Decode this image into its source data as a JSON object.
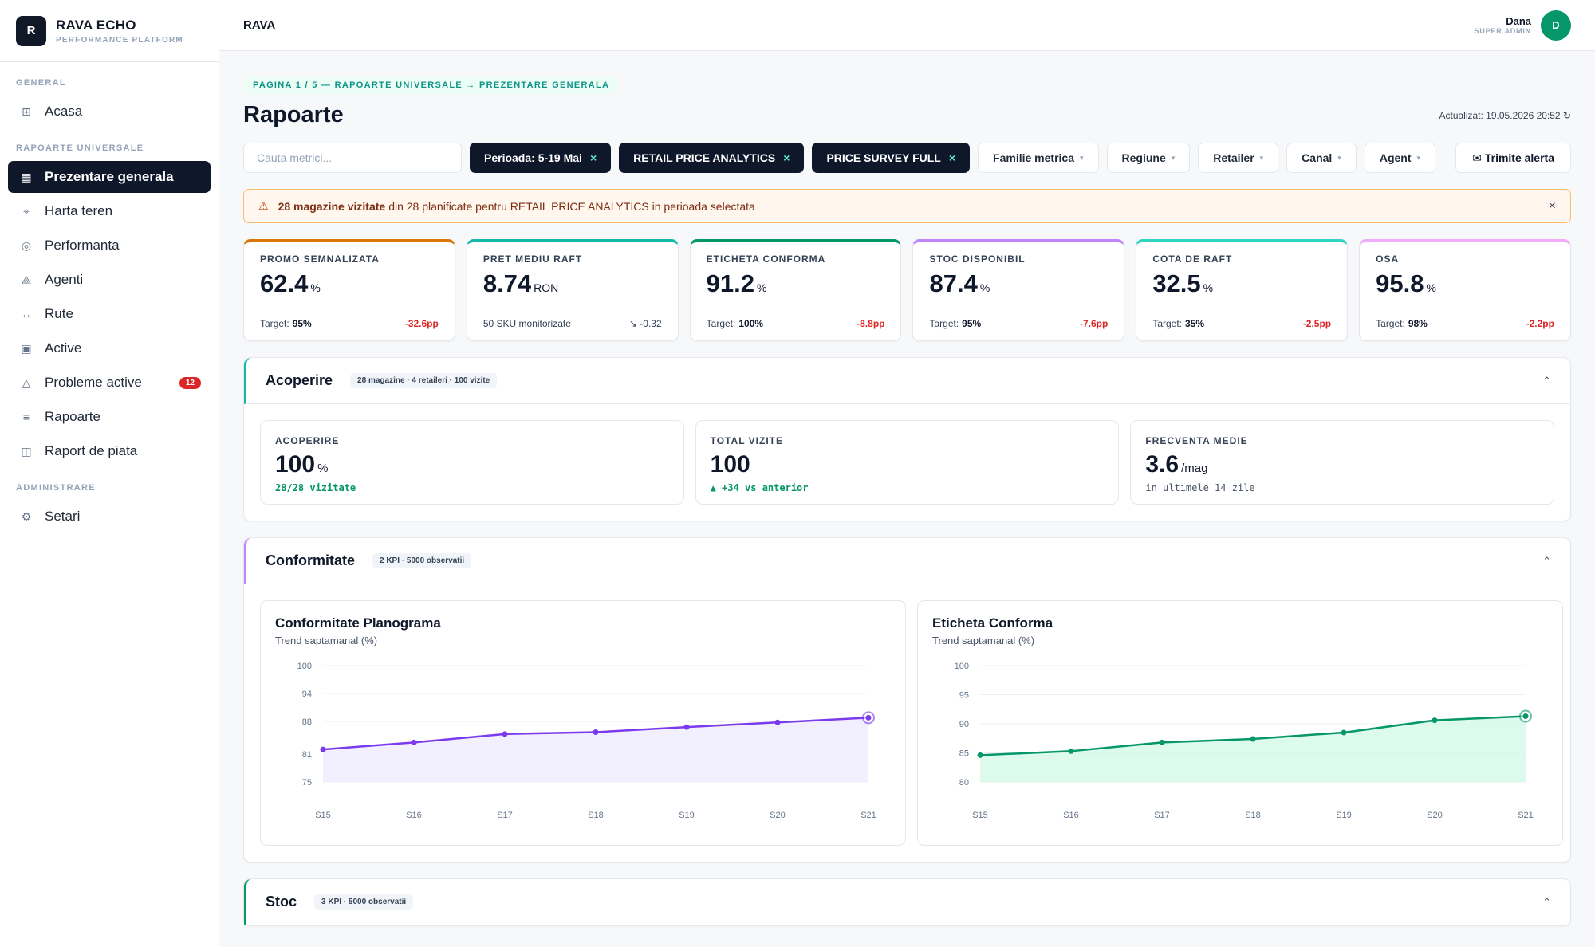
{
  "brand": {
    "logo_letter": "R",
    "name": "RAVA ECHO",
    "subtitle": "PERFORMANCE PLATFORM"
  },
  "sidebar": {
    "sections": [
      {
        "title": "GENERAL"
      },
      {
        "title": "RAPOARTE UNIVERSALE"
      },
      {
        "title": "ADMINISTRARE"
      }
    ],
    "items": [
      {
        "label": "Acasa",
        "icon": "grid-icon"
      },
      {
        "label": "Prezentare generala",
        "icon": "dashboard-icon",
        "active": true
      },
      {
        "label": "Harta teren",
        "icon": "map-pin-icon"
      },
      {
        "label": "Performanta",
        "icon": "target-icon"
      },
      {
        "label": "Agenti",
        "icon": "agents-icon"
      },
      {
        "label": "Rute",
        "icon": "route-icon"
      },
      {
        "label": "Active",
        "icon": "assets-icon"
      },
      {
        "label": "Probleme active",
        "icon": "warning-icon",
        "badge": "12"
      },
      {
        "label": "Rapoarte",
        "icon": "list-icon"
      },
      {
        "label": "Raport de piata",
        "icon": "book-icon"
      },
      {
        "label": "Setari",
        "icon": "gear-icon"
      }
    ]
  },
  "topbar": {
    "title": "RAVA",
    "user_name": "Dana",
    "user_role": "SUPER ADMIN",
    "avatar_letter": "D"
  },
  "page": {
    "breadcrumb": "PAGINA 1 / 5 — RAPOARTE UNIVERSALE → PREZENTARE GENERALA",
    "title": "Rapoarte",
    "updated": "Actualizat: 19.05.2026 20:52 ↻"
  },
  "filters": {
    "search_placeholder": "Cauta metrici...",
    "chips": [
      {
        "label": "Perioada: 5-19 Mai",
        "remove": "×"
      },
      {
        "label": "RETAIL PRICE ANALYTICS",
        "remove": "×"
      },
      {
        "label": "PRICE SURVEY FULL",
        "remove": "×"
      }
    ],
    "dropdowns": [
      {
        "label": "Familie metrica",
        "caret": "▾"
      },
      {
        "label": "Regiune",
        "caret": "▾"
      },
      {
        "label": "Retailer",
        "caret": "▾"
      },
      {
        "label": "Canal",
        "caret": "▾"
      },
      {
        "label": "Agent",
        "caret": "▾"
      }
    ],
    "alert_button": "✉ Trimite alerta"
  },
  "banner": {
    "icon": "⚠",
    "bold": "28 magazine vizitate",
    "text": "din 28 planificate pentru RETAIL PRICE ANALYTICS in perioada selectata",
    "close": "×"
  },
  "kpis": [
    {
      "label": "PROMO SEMNALIZATA",
      "value": "62.4",
      "unit": "%",
      "foot_label": "Target:",
      "foot_value": "95%",
      "delta": "-32.6pp",
      "accent": "#d97706"
    },
    {
      "label": "PRET MEDIU RAFT",
      "value": "8.74",
      "unit": "RON",
      "foot_label": "50 SKU monitorizate",
      "foot_value": "",
      "delta": "↘ -0.32",
      "accent": "#14b8a6",
      "neutral": true
    },
    {
      "label": "ETICHETA CONFORMA",
      "value": "91.2",
      "unit": "%",
      "foot_label": "Target:",
      "foot_value": "100%",
      "delta": "-8.8pp",
      "accent": "#059669"
    },
    {
      "label": "STOC DISPONIBIL",
      "value": "87.4",
      "unit": "%",
      "foot_label": "Target:",
      "foot_value": "95%",
      "delta": "-7.6pp",
      "accent": "#c084fc"
    },
    {
      "label": "COTA DE RAFT",
      "value": "32.5",
      "unit": "%",
      "foot_label": "Target:",
      "foot_value": "35%",
      "delta": "-2.5pp",
      "accent": "#2dd4bf"
    },
    {
      "label": "OSA",
      "value": "95.8",
      "unit": "%",
      "foot_label": "Target:",
      "foot_value": "98%",
      "delta": "-2.2pp",
      "accent": "#f0abfc"
    }
  ],
  "sections": {
    "acoperire": {
      "title": "Acoperire",
      "tag": "28 magazine · 4 retaileri · 100 vizite",
      "chevron": "⌃",
      "accent": "#14b8a6",
      "stats": [
        {
          "label": "ACOPERIRE",
          "value": "100",
          "unit": "%",
          "sub": "28/28 vizitate",
          "positive": true
        },
        {
          "label": "TOTAL VIZITE",
          "value": "100",
          "unit": "",
          "sub": "▲ +34 vs anterior",
          "positive": true
        },
        {
          "label": "FRECVENTA MEDIE",
          "value": "3.6",
          "unit": "/mag",
          "sub": "in ultimele 14 zile",
          "positive": false
        }
      ]
    },
    "conformitate": {
      "title": "Conformitate",
      "tag": "2 KPI · 5000 observatii",
      "chevron": "⌃",
      "accent": "#c084fc",
      "charts": [
        {
          "title": "Conformitate Planograma",
          "subtitle": "Trend saptamanal (%)"
        },
        {
          "title": "Eticheta Conforma",
          "subtitle": "Trend saptamanal (%)"
        }
      ]
    },
    "stoc": {
      "title": "Stoc",
      "tag": "3 KPI · 5000 observatii",
      "chevron": "⌃",
      "accent": "#059669"
    }
  },
  "chart_data": [
    {
      "type": "area",
      "title": "Conformitate Planograma",
      "subtitle": "Trend saptamanal (%)",
      "categories": [
        "S15",
        "S16",
        "S17",
        "S18",
        "S19",
        "S20",
        "S21"
      ],
      "values": [
        82,
        83.5,
        85.3,
        85.7,
        86.8,
        87.8,
        88.8
      ],
      "yticks": [
        75,
        81,
        88,
        94,
        100
      ],
      "ylim": [
        75,
        100
      ],
      "color": "#7c3aed",
      "fill": "#ede9fe"
    },
    {
      "type": "area",
      "title": "Eticheta Conforma",
      "subtitle": "Trend saptamanal (%)",
      "categories": [
        "S15",
        "S16",
        "S17",
        "S18",
        "S19",
        "S20",
        "S21"
      ],
      "values": [
        84.6,
        85.3,
        86.8,
        87.4,
        88.5,
        90.6,
        91.3
      ],
      "yticks": [
        80,
        85,
        90,
        95,
        100
      ],
      "ylim": [
        80,
        100
      ],
      "color": "#059669",
      "fill": "#d1fae5"
    }
  ]
}
